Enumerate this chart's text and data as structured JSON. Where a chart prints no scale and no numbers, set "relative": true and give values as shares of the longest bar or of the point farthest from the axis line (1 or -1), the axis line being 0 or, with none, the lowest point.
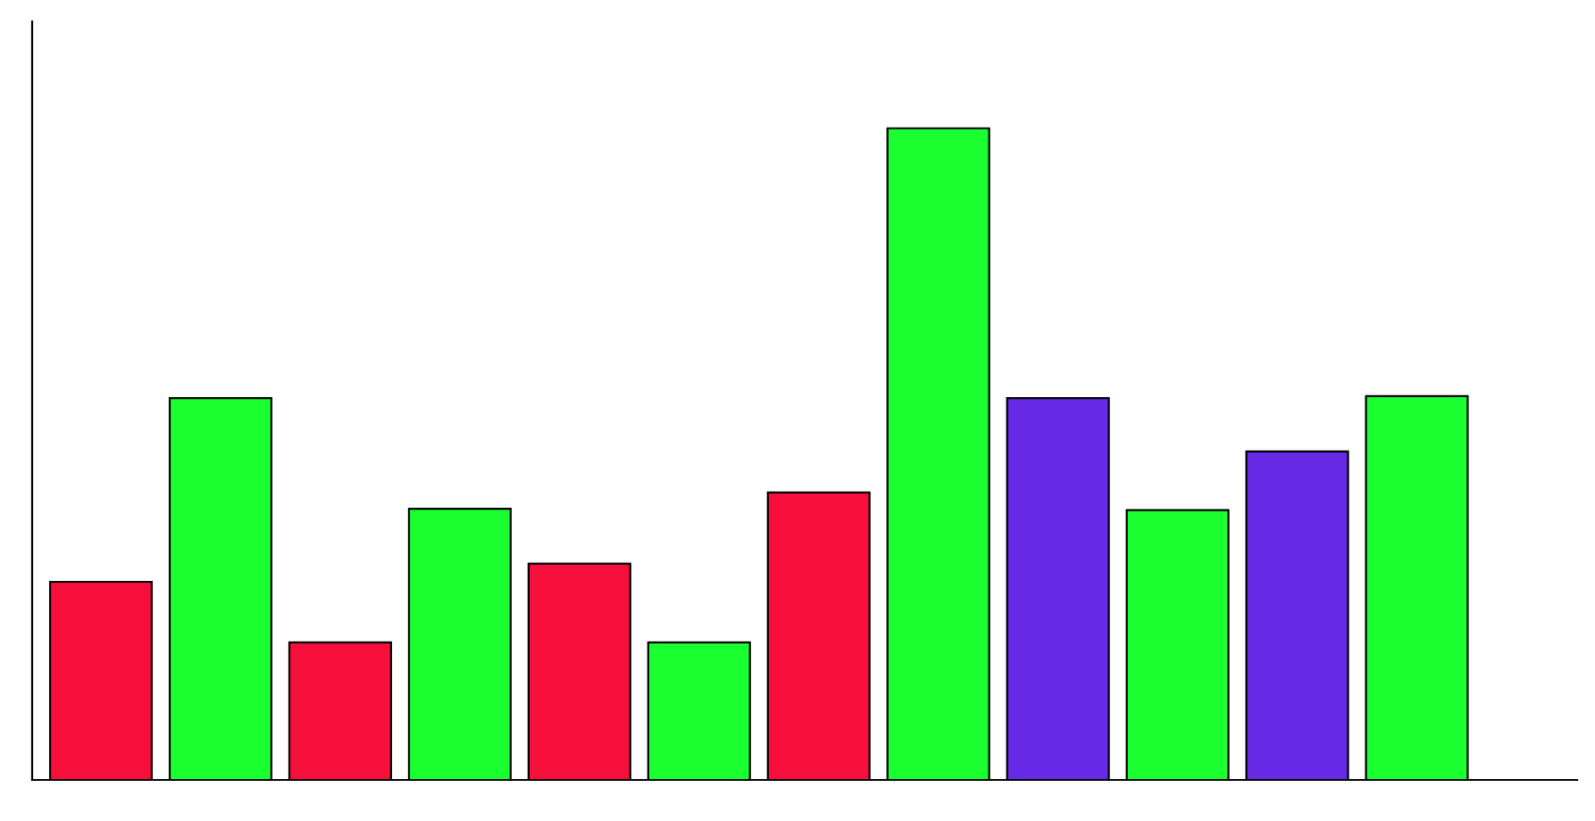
{
  "chart_data": {
    "type": "bar",
    "relative": true,
    "categories": [
      null,
      null,
      null,
      null,
      null,
      null,
      null,
      null,
      null,
      null,
      null,
      null
    ],
    "values": [
      0.304,
      0.586,
      0.211,
      0.416,
      0.332,
      0.211,
      0.441,
      1,
      0.586,
      0.414,
      0.504,
      0.589
    ],
    "colors": [
      "#f50f3a",
      "#19ff2f",
      "#f50f3a",
      "#19ff2f",
      "#f50f3a",
      "#19ff2f",
      "#f50f3a",
      "#19ff2f",
      "#662ae6",
      "#19ff2f",
      "#662ae6",
      "#19ff2f"
    ],
    "grid": false,
    "legend": false
  }
}
